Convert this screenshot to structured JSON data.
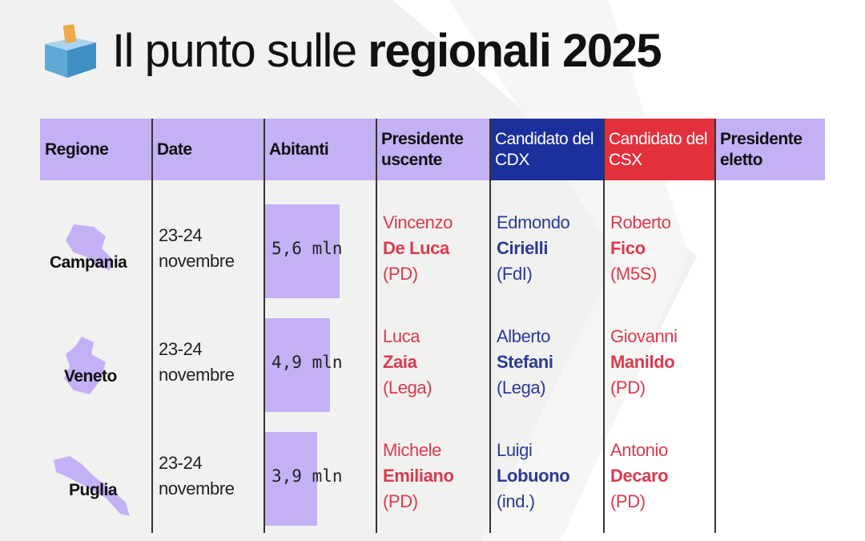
{
  "title": {
    "prefix": "Il punto sulle ",
    "bold": "regionali 2025",
    "icon": "ballot-box-icon"
  },
  "colors": {
    "header": "#c4b0f5",
    "cdx": "#1b2f9c",
    "csx": "#e2303d",
    "red_text": "#d93a4f",
    "blue_text": "#2b3a94",
    "bar": "#c4b0f5"
  },
  "headers": [
    "Regione",
    "Date",
    "Abitanti",
    "Presidente uscente",
    "Candidato del CDX",
    "Candidato del CSX",
    "Presidente eletto"
  ],
  "rows": [
    {
      "region": "Campania",
      "date_line1": "23-24",
      "date_line2": "novembre",
      "population_mln": 5.6,
      "population": "5,6 mln",
      "uscente": {
        "first": "Vincenzo",
        "last": "De Luca",
        "party": "(PD)"
      },
      "cdx": {
        "first": "Edmondo",
        "last": "Cirielli",
        "party": "(FdI)"
      },
      "csx": {
        "first": "Roberto",
        "last": "Fico",
        "party": "(M5S)"
      },
      "eletto": ""
    },
    {
      "region": "Veneto",
      "date_line1": "23-24",
      "date_line2": "novembre",
      "population_mln": 4.9,
      "population": "4,9 mln",
      "uscente": {
        "first": "Luca",
        "last": "Zaia",
        "party": "(Lega)"
      },
      "cdx": {
        "first": "Alberto",
        "last": "Stefani",
        "party": "(Lega)"
      },
      "csx": {
        "first": "Giovanni",
        "last": "Manildo",
        "party": "(PD)"
      },
      "eletto": ""
    },
    {
      "region": "Puglia",
      "date_line1": "23-24",
      "date_line2": "novembre",
      "population_mln": 3.9,
      "population": "3,9 mln",
      "uscente": {
        "first": "Michele",
        "last": "Emiliano",
        "party": "(PD)"
      },
      "cdx": {
        "first": "Luigi",
        "last": "Lobuono",
        "party": "(ind.)"
      },
      "csx": {
        "first": "Antonio",
        "last": "Decaro",
        "party": "(PD)"
      },
      "eletto": ""
    }
  ]
}
